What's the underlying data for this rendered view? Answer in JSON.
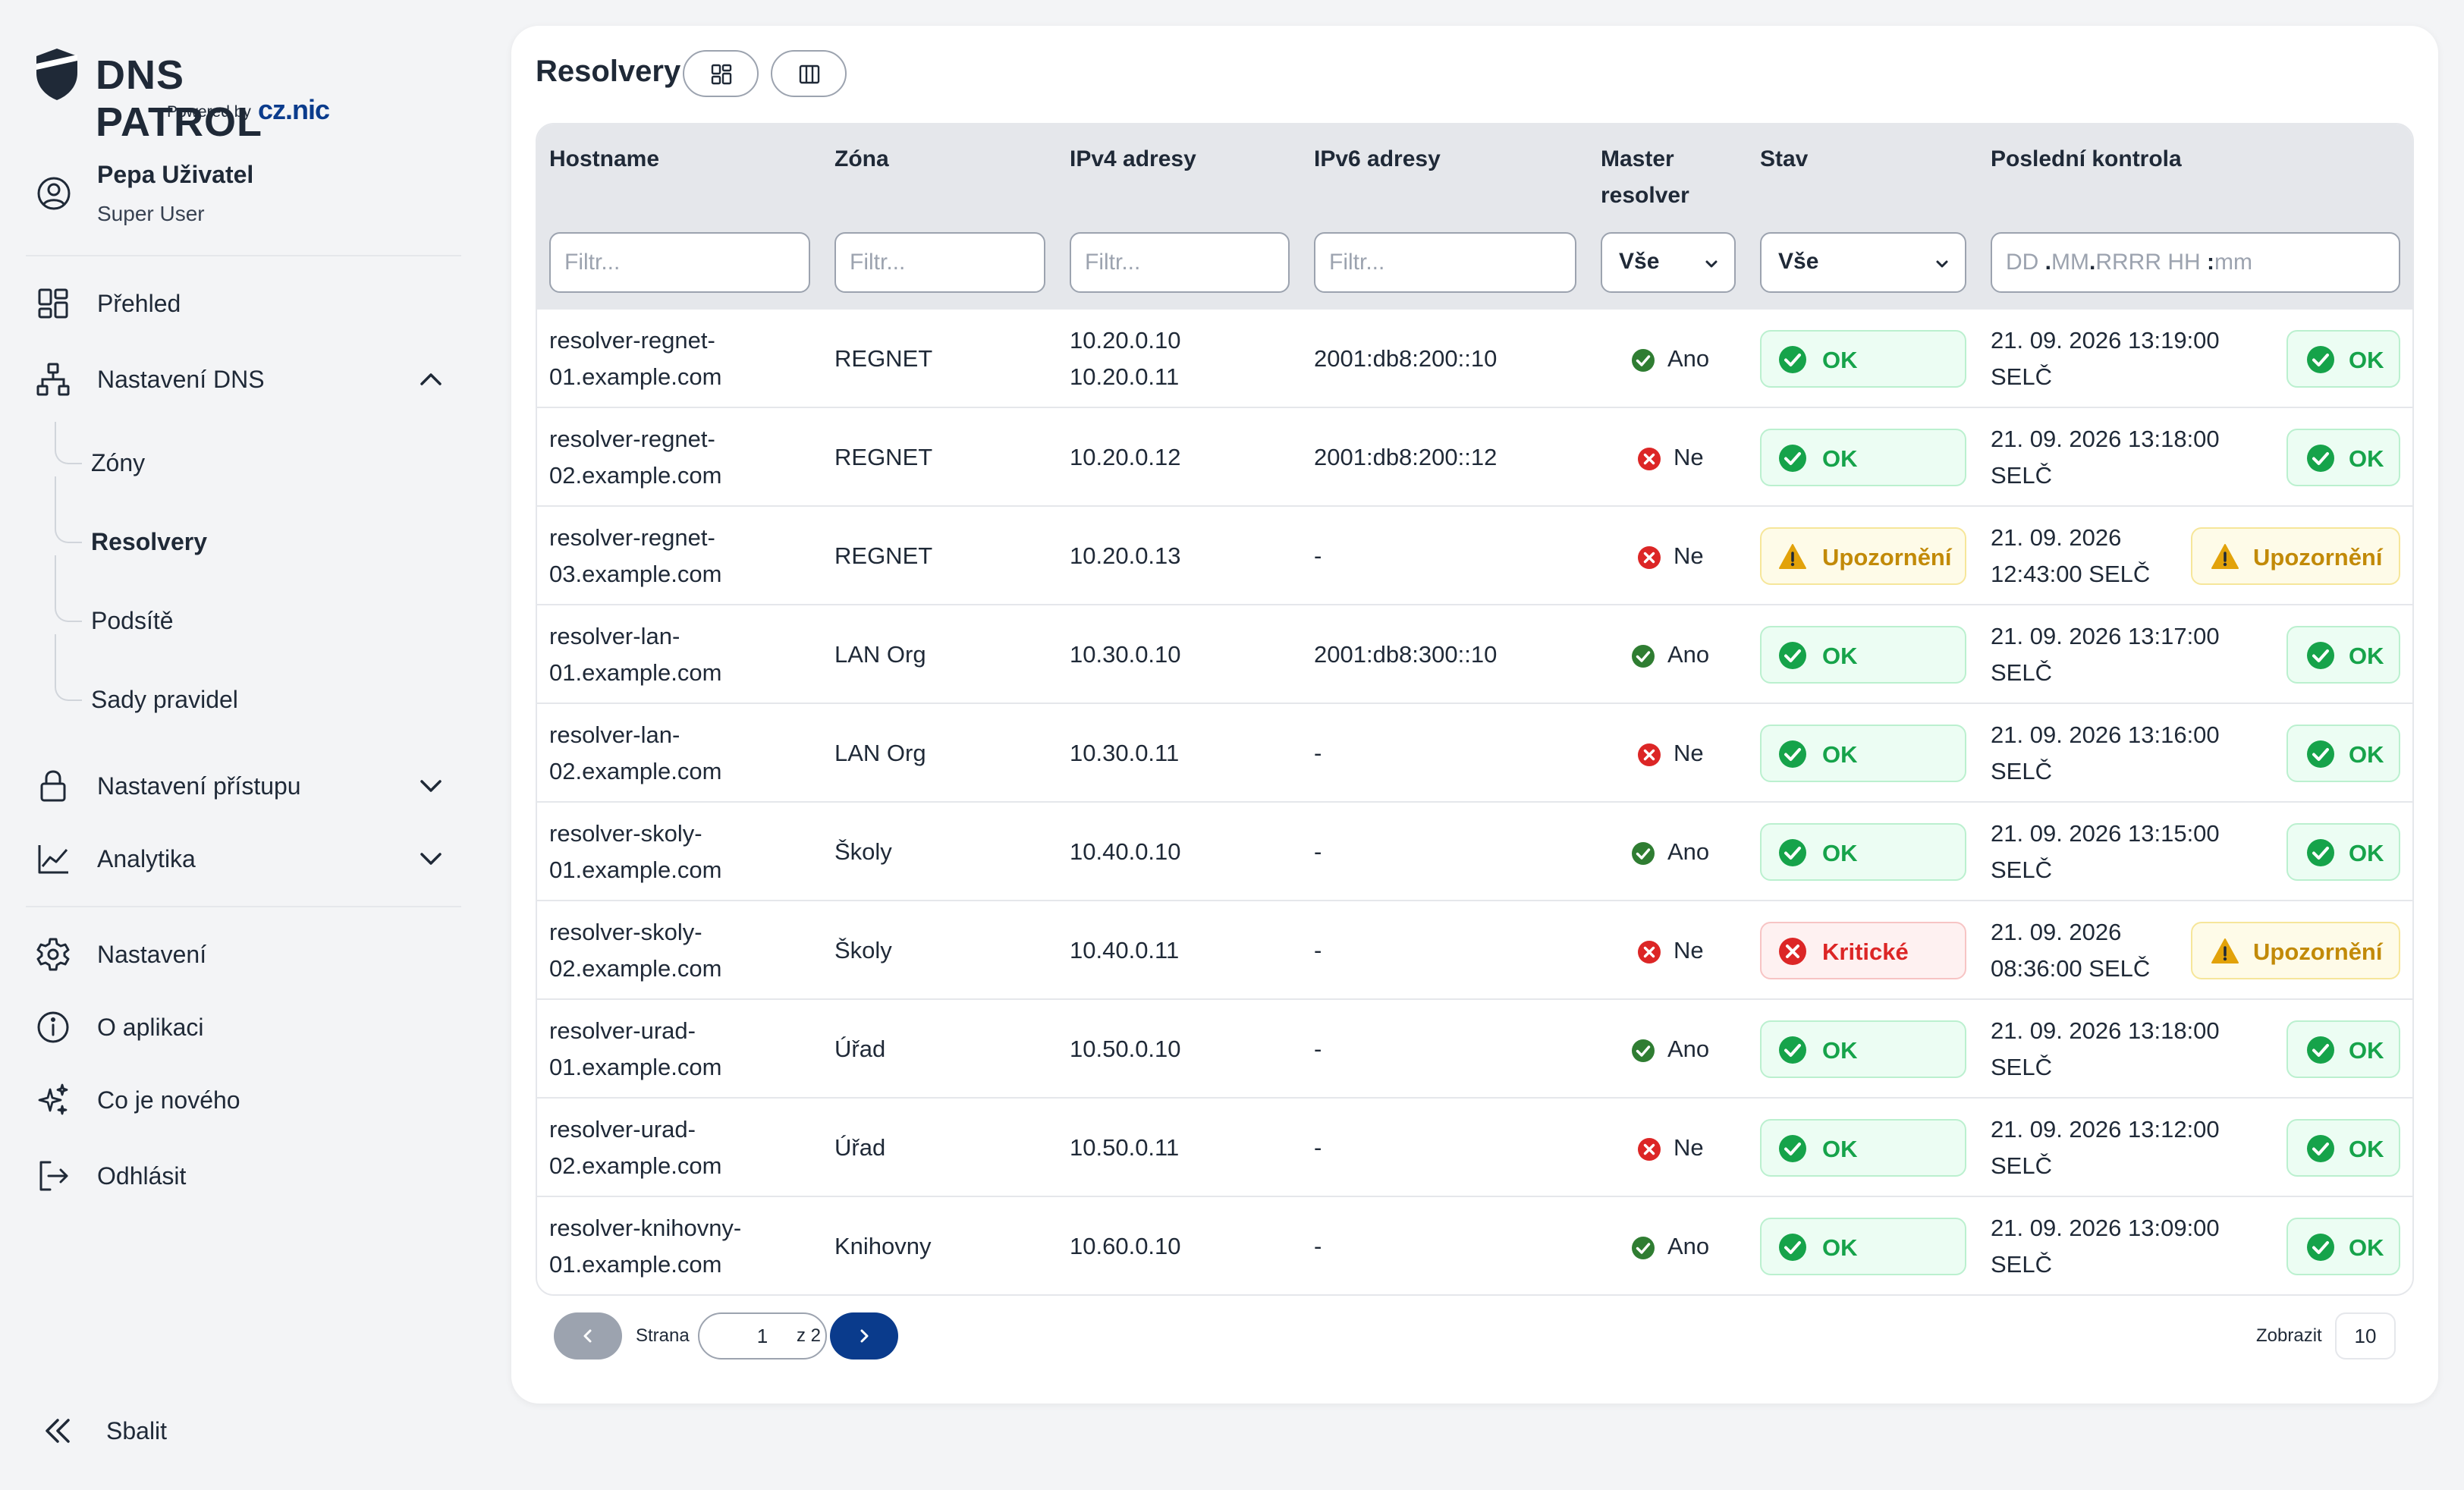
{
  "brand": {
    "title": "DNS PATROL",
    "powered_by": "Powered by",
    "company": "cz.nic"
  },
  "user": {
    "name": "Pepa Uživatel",
    "role": "Super User"
  },
  "nav": {
    "overview": "Přehled",
    "dns_settings": "Nastavení DNS",
    "sub": {
      "zones": "Zóny",
      "resolvers": "Resolvery",
      "subnets": "Podsítě",
      "rulesets": "Sady pravidel"
    },
    "access_settings": "Nastavení přístupu",
    "analytics": "Analytika",
    "settings": "Nastavení",
    "about": "O aplikaci",
    "whats_new": "Co je nového",
    "logout": "Odhlásit",
    "collapse": "Sbalit"
  },
  "page": {
    "title": "Resolvery"
  },
  "table": {
    "columns": {
      "hostname": "Hostname",
      "zone": "Zóna",
      "ipv4": "IPv4 adresy",
      "ipv6": "IPv6 adresy",
      "master_line1": "Master",
      "master_line2": "resolver",
      "state": "Stav",
      "last_check": "Poslední kontrola"
    },
    "filters": {
      "placeholder": "Filtr...",
      "master_select": "Vše",
      "state_select": "Vše",
      "date_dd": "DD",
      "date_mm": "MM",
      "date_yyyy": "RRRR",
      "date_hh": "HH",
      "date_min": "mm"
    },
    "rows": [
      {
        "host1": "resolver-regnet-",
        "host2": "01.example.com",
        "zone": "REGNET",
        "ipv4_1": "10.20.0.10",
        "ipv4_2": "10.20.0.11",
        "ipv6": "2001:db8:200::10",
        "master": "Ano",
        "state": "OK",
        "check1": "21. 09. 2026 13:19:00",
        "check2": "SELČ",
        "check_state": "OK"
      },
      {
        "host1": "resolver-regnet-",
        "host2": "02.example.com",
        "zone": "REGNET",
        "ipv4_1": "10.20.0.12",
        "ipv4_2": "",
        "ipv6": "2001:db8:200::12",
        "master": "Ne",
        "state": "OK",
        "check1": "21. 09. 2026 13:18:00",
        "check2": "SELČ",
        "check_state": "OK"
      },
      {
        "host1": "resolver-regnet-",
        "host2": "03.example.com",
        "zone": "REGNET",
        "ipv4_1": "10.20.0.13",
        "ipv4_2": "",
        "ipv6": "-",
        "master": "Ne",
        "state": "Upozornění",
        "check1": "21. 09. 2026",
        "check2": "12:43:00 SELČ",
        "check_state": "Upozornění"
      },
      {
        "host1": "resolver-lan-",
        "host2": "01.example.com",
        "zone": "LAN Org",
        "ipv4_1": "10.30.0.10",
        "ipv4_2": "",
        "ipv6": "2001:db8:300::10",
        "master": "Ano",
        "state": "OK",
        "check1": "21. 09. 2026 13:17:00",
        "check2": "SELČ",
        "check_state": "OK"
      },
      {
        "host1": "resolver-lan-",
        "host2": "02.example.com",
        "zone": "LAN Org",
        "ipv4_1": "10.30.0.11",
        "ipv4_2": "",
        "ipv6": "-",
        "master": "Ne",
        "state": "OK",
        "check1": "21. 09. 2026 13:16:00",
        "check2": "SELČ",
        "check_state": "OK"
      },
      {
        "host1": "resolver-skoly-",
        "host2": "01.example.com",
        "zone": "Školy",
        "ipv4_1": "10.40.0.10",
        "ipv4_2": "",
        "ipv6": "-",
        "master": "Ano",
        "state": "OK",
        "check1": "21. 09. 2026 13:15:00",
        "check2": "SELČ",
        "check_state": "OK"
      },
      {
        "host1": "resolver-skoly-",
        "host2": "02.example.com",
        "zone": "Školy",
        "ipv4_1": "10.40.0.11",
        "ipv4_2": "",
        "ipv6": "-",
        "master": "Ne",
        "state": "Kritické",
        "check1": "21. 09. 2026",
        "check2": "08:36:00 SELČ",
        "check_state": "Upozornění"
      },
      {
        "host1": "resolver-urad-",
        "host2": "01.example.com",
        "zone": "Úřad",
        "ipv4_1": "10.50.0.10",
        "ipv4_2": "",
        "ipv6": "-",
        "master": "Ano",
        "state": "OK",
        "check1": "21. 09. 2026 13:18:00",
        "check2": "SELČ",
        "check_state": "OK"
      },
      {
        "host1": "resolver-urad-",
        "host2": "02.example.com",
        "zone": "Úřad",
        "ipv4_1": "10.50.0.11",
        "ipv4_2": "",
        "ipv6": "-",
        "master": "Ne",
        "state": "OK",
        "check1": "21. 09. 2026 13:12:00",
        "check2": "SELČ",
        "check_state": "OK"
      },
      {
        "host1": "resolver-knihovny-",
        "host2": "01.example.com",
        "zone": "Knihovny",
        "ipv4_1": "10.60.0.10",
        "ipv4_2": "",
        "ipv6": "-",
        "master": "Ano",
        "state": "OK",
        "check1": "21. 09. 2026 13:09:00",
        "check2": "SELČ",
        "check_state": "OK"
      }
    ]
  },
  "pagination": {
    "page_label": "Strana",
    "current_page": "1",
    "of_label": "z 2",
    "show_label": "Zobrazit",
    "page_size": "10"
  },
  "colors": {
    "brand_blue": "#0a3b8c",
    "ok_green": "#16a34a",
    "warn_amber": "#c28a08",
    "critical_red": "#dc2626"
  }
}
